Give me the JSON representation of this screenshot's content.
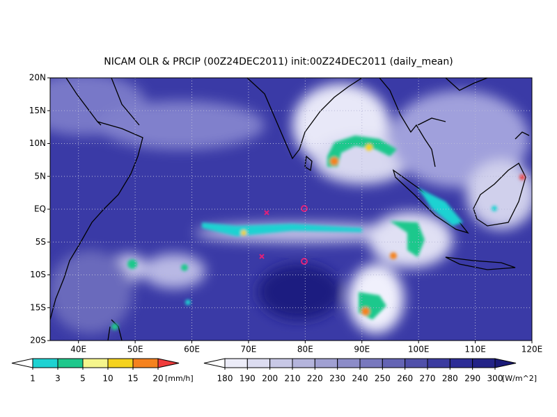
{
  "title": "NICAM OLR & PRCIP (00Z24DEC2011) init:00Z24DEC2011 (daily_mean)",
  "map": {
    "lat_labels": [
      "20N",
      "15N",
      "10N",
      "5N",
      "EQ",
      "5S",
      "10S",
      "15S",
      "20S"
    ],
    "lon_labels": [
      "40E",
      "50E",
      "60E",
      "70E",
      "80E",
      "90E",
      "100E",
      "110E",
      "120E"
    ]
  },
  "precip_legend": {
    "labels": [
      1,
      3,
      5,
      10,
      15,
      20
    ],
    "unit": "[mm/h]",
    "colors": [
      "#ffffff",
      "#1ed2d2",
      "#1ec88c",
      "#f5f58c",
      "#f5d21e",
      "#f5821e",
      "#f03c3c"
    ]
  },
  "olr_legend": {
    "labels": [
      180,
      190,
      200,
      210,
      220,
      230,
      240,
      250,
      260,
      270,
      280,
      290,
      300
    ],
    "unit": "[W/m^2]",
    "colors": [
      "#ffffff",
      "#ececf8",
      "#dcdcf0",
      "#c8c8e6",
      "#b4b4dc",
      "#a0a0d2",
      "#8c8cc8",
      "#7878be",
      "#6464b4",
      "#5050aa",
      "#3c3ca0",
      "#2d2d96",
      "#232387",
      "#1a1a78"
    ]
  }
}
